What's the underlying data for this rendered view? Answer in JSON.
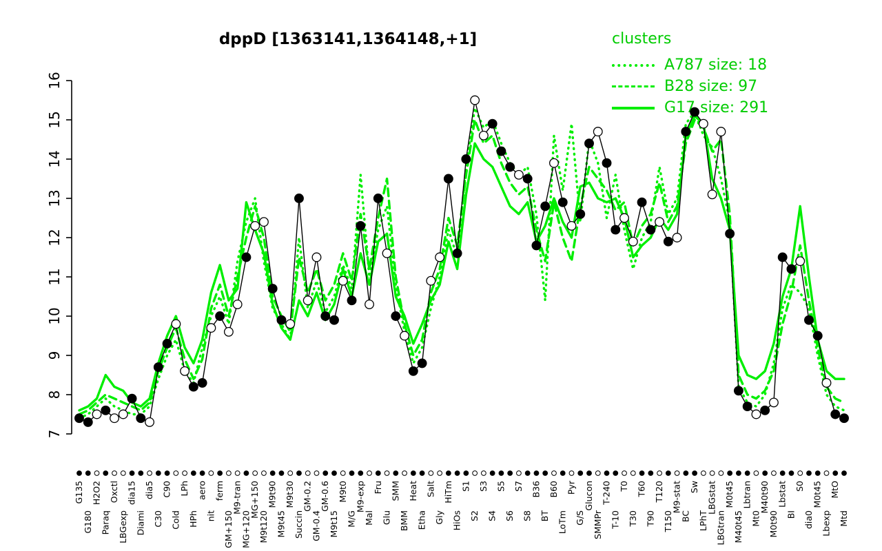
{
  "title": "dppD [1363141,1364148,+1]",
  "legend": {
    "header": "clusters",
    "items": [
      {
        "label": "A787 size: 18",
        "style": "dotted"
      },
      {
        "label": "B28 size: 97",
        "style": "dashed"
      },
      {
        "label": "G17 size: 291",
        "style": "solid"
      }
    ]
  },
  "colors": {
    "cluster_line": "#00ee00",
    "cluster_text": "#00cc00",
    "gene_line": "#000000",
    "marker_open_fill": "#ffffff"
  },
  "chart_data": {
    "type": "line",
    "title": "dppD [1363141,1364148,+1]",
    "xlabel": "",
    "ylabel": "",
    "ylim": [
      7,
      16
    ],
    "yticks": [
      7,
      8,
      9,
      10,
      11,
      12,
      13,
      14,
      15,
      16
    ],
    "grid": false,
    "legend_position": "top-right",
    "categories": [
      "G135",
      "G180",
      "H2O2",
      "Paraq",
      "Oxctl",
      "LBGexp",
      "dia15",
      "Diami",
      "dia5",
      "C30",
      "C90",
      "Cold",
      "LPh",
      "HPh",
      "aero",
      "nit",
      "ferm",
      "GM+150",
      "M9-tran",
      "MG+120",
      "MG+150",
      "M9t120",
      "M9t90",
      "M9t45",
      "M9t30",
      "Succin",
      "GM-0.2",
      "GM-0.4",
      "GM-0.6",
      "M9t15",
      "M9t0",
      "M/G",
      "M9-exp",
      "Mal",
      "Fru",
      "Glu",
      "SMM",
      "BMM",
      "Heat",
      "Etha",
      "Salt",
      "Gly",
      "HiTm",
      "HiOs",
      "S1",
      "S2",
      "S3",
      "S4",
      "S5",
      "S6",
      "S7",
      "S8",
      "B36",
      "BT",
      "B60",
      "LoTm",
      "Pyr",
      "G/S",
      "Glucon",
      "SMMPr",
      "T-240",
      "T-10",
      "T0",
      "T30",
      "T60",
      "T90",
      "T120",
      "T150",
      "M9-stat",
      "BC",
      "Sw",
      "LPhT",
      "LBGstat",
      "LBGtran",
      "M0t45",
      "M40t45",
      "Lbtran",
      "Mt0",
      "M40t90",
      "M0t90",
      "Lbstat",
      "BI",
      "S0",
      "dia0",
      "M0t45",
      "Lbexp",
      "MtO",
      "Mtd"
    ],
    "marker_fill": [
      "f",
      "f",
      "o",
      "f",
      "o",
      "o",
      "f",
      "f",
      "o",
      "f",
      "f",
      "o",
      "o",
      "f",
      "f",
      "o",
      "f",
      "o",
      "o",
      "f",
      "o",
      "o",
      "f",
      "f",
      "o",
      "f",
      "o",
      "o",
      "f",
      "f",
      "o",
      "f",
      "f",
      "o",
      "f",
      "o",
      "f",
      "o",
      "f",
      "f",
      "o",
      "o",
      "f",
      "f",
      "f",
      "o",
      "o",
      "f",
      "f",
      "f",
      "o",
      "f",
      "f",
      "f",
      "o",
      "f",
      "o",
      "f",
      "f",
      "o",
      "f",
      "f",
      "o",
      "o",
      "f",
      "f",
      "o",
      "f",
      "o",
      "f",
      "f",
      "o",
      "o",
      "o",
      "f",
      "f",
      "f",
      "o",
      "f",
      "o",
      "f",
      "f",
      "o",
      "f",
      "f",
      "o",
      "f",
      "f"
    ],
    "series": [
      {
        "name": "gene",
        "role": "gene",
        "style": "solid",
        "color": "#000000",
        "markers": true,
        "values": [
          7.4,
          7.3,
          7.5,
          7.6,
          7.4,
          7.5,
          7.9,
          7.4,
          7.3,
          8.7,
          9.3,
          9.8,
          8.6,
          8.2,
          8.3,
          9.7,
          10.0,
          9.6,
          10.3,
          11.5,
          12.3,
          12.4,
          10.7,
          9.9,
          9.8,
          13.0,
          10.4,
          11.5,
          10.0,
          9.9,
          10.9,
          10.4,
          12.3,
          10.3,
          13.0,
          11.6,
          10.0,
          9.5,
          8.6,
          8.8,
          10.9,
          11.5,
          13.5,
          11.6,
          14.0,
          15.5,
          14.6,
          14.9,
          14.2,
          13.8,
          13.6,
          13.5,
          11.8,
          12.8,
          13.9,
          12.9,
          12.3,
          12.6,
          14.4,
          14.7,
          13.9,
          12.2,
          12.5,
          11.9,
          12.9,
          12.2,
          12.4,
          11.9,
          12.0,
          14.7,
          15.2,
          14.9,
          13.1,
          14.7,
          12.1,
          8.1,
          7.7,
          7.5,
          7.6,
          7.8,
          11.5,
          11.2,
          11.4,
          9.9,
          9.5,
          8.3,
          7.5,
          7.4
        ]
      },
      {
        "name": "A787",
        "role": "cluster",
        "style": "dotted",
        "color": "#00ee00",
        "markers": false,
        "values": [
          7.4,
          7.5,
          7.7,
          7.9,
          7.7,
          7.6,
          7.5,
          7.5,
          7.7,
          8.4,
          9.0,
          9.4,
          8.6,
          8.3,
          9.2,
          10.0,
          10.5,
          9.8,
          11.4,
          12.4,
          13.0,
          11.4,
          10.2,
          9.8,
          9.4,
          12.0,
          10.2,
          10.9,
          10.1,
          10.5,
          11.3,
          10.7,
          13.6,
          11.0,
          12.2,
          12.8,
          10.8,
          9.6,
          8.8,
          9.2,
          10.2,
          11.0,
          12.2,
          11.5,
          13.8,
          15.3,
          14.8,
          15.0,
          14.4,
          13.9,
          13.6,
          13.8,
          12.6,
          10.4,
          14.6,
          13.2,
          14.9,
          12.4,
          14.5,
          13.9,
          12.5,
          13.6,
          12.2,
          11.2,
          12.0,
          12.4,
          13.8,
          12.6,
          13.0,
          14.9,
          15.2,
          14.6,
          14.3,
          13.5,
          12.4,
          8.2,
          7.8,
          7.7,
          8.0,
          8.8,
          10.2,
          10.8,
          10.6,
          10.2,
          9.0,
          8.0,
          7.7,
          7.6
        ]
      },
      {
        "name": "B28",
        "role": "cluster",
        "style": "dashed",
        "color": "#00ee00",
        "markers": false,
        "values": [
          7.5,
          7.6,
          7.8,
          8.0,
          7.9,
          7.8,
          7.7,
          7.6,
          7.8,
          8.6,
          9.2,
          9.7,
          8.9,
          8.4,
          8.9,
          10.2,
          10.8,
          10.0,
          11.0,
          12.0,
          12.8,
          12.0,
          10.5,
          10.0,
          9.6,
          11.5,
          10.6,
          11.2,
          10.4,
          10.8,
          11.6,
          10.9,
          12.6,
          11.2,
          12.5,
          13.5,
          11.0,
          9.8,
          9.0,
          9.4,
          10.6,
          11.2,
          12.5,
          11.8,
          13.6,
          15.0,
          14.4,
          14.6,
          13.9,
          13.4,
          13.1,
          13.3,
          12.2,
          11.4,
          12.9,
          12.0,
          11.4,
          12.8,
          13.8,
          13.5,
          13.2,
          12.7,
          12.9,
          11.8,
          12.3,
          12.6,
          13.4,
          12.4,
          12.8,
          14.4,
          15.0,
          14.8,
          14.2,
          14.5,
          12.6,
          8.5,
          8.0,
          7.9,
          8.1,
          8.6,
          9.8,
          10.6,
          11.8,
          10.4,
          9.2,
          8.2,
          7.9,
          7.8
        ]
      },
      {
        "name": "G17",
        "role": "cluster",
        "style": "solid",
        "color": "#00ee00",
        "markers": false,
        "values": [
          7.6,
          7.7,
          7.9,
          8.5,
          8.2,
          8.1,
          7.8,
          7.7,
          7.9,
          8.8,
          9.5,
          10.0,
          9.2,
          8.8,
          9.4,
          10.6,
          11.3,
          10.4,
          10.7,
          12.9,
          12.2,
          11.6,
          10.3,
          9.7,
          9.4,
          10.4,
          10.0,
          10.6,
          9.9,
          10.3,
          11.2,
          10.5,
          11.6,
          10.8,
          11.9,
          12.1,
          10.5,
          10.0,
          9.3,
          9.8,
          10.4,
          10.8,
          11.9,
          11.2,
          13.1,
          14.4,
          14.0,
          13.8,
          13.3,
          12.8,
          12.6,
          12.9,
          11.9,
          12.3,
          13.0,
          12.4,
          12.0,
          13.3,
          13.4,
          13.0,
          12.9,
          13.0,
          12.5,
          11.5,
          11.8,
          12.0,
          12.5,
          12.2,
          12.6,
          14.6,
          15.1,
          14.9,
          13.5,
          13.0,
          12.2,
          9.0,
          8.5,
          8.4,
          8.6,
          9.3,
          10.5,
          11.2,
          12.8,
          11.0,
          9.4,
          8.6,
          8.4,
          8.4
        ]
      }
    ]
  }
}
